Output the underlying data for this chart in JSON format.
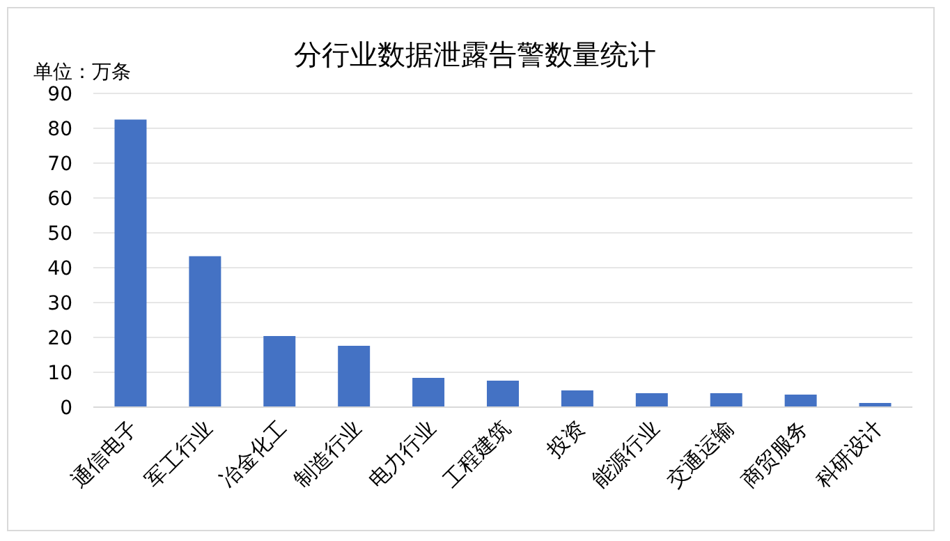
{
  "chart_data": {
    "type": "bar",
    "title": "分行业数据泄露告警数量统计",
    "ylabel": "单位：万条",
    "categories": [
      "通信电子",
      "军工行业",
      "冶金化工",
      "制造行业",
      "电力行业",
      "工程建筑",
      "投资",
      "能源行业",
      "交通运输",
      "商贸服务",
      "科研设计"
    ],
    "values": [
      82.5,
      43.3,
      20.4,
      17.6,
      8.4,
      7.6,
      4.8,
      4.0,
      4.0,
      3.6,
      1.2
    ],
    "color": "#4472c4",
    "ylim": [
      0,
      90
    ],
    "yticks": [
      0,
      10,
      20,
      30,
      40,
      50,
      60,
      70,
      80,
      90
    ],
    "grid": "y"
  }
}
